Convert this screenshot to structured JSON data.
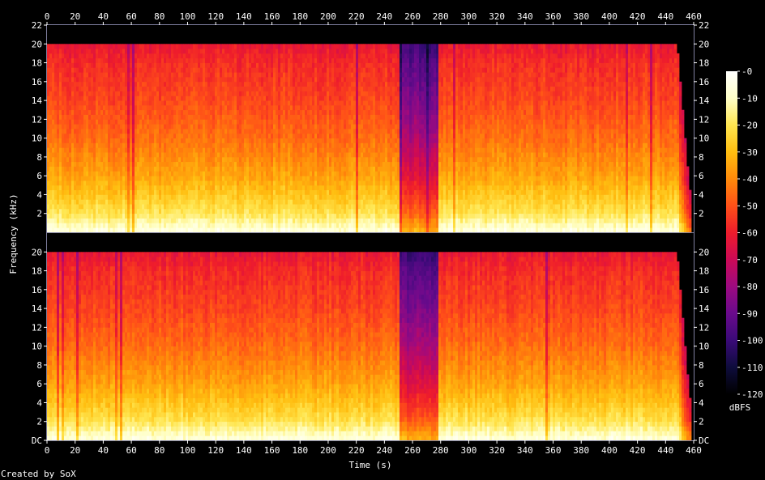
{
  "chart_data": {
    "type": "heatmap",
    "xlabel": "Time (s)",
    "ylabel": "Frequency (kHz)",
    "colorbar_label": "dBFS",
    "credit": "Created by SoX",
    "x_ticks": [
      "0",
      "20",
      "40",
      "60",
      "80",
      "100",
      "120",
      "140",
      "160",
      "180",
      "200",
      "220",
      "240",
      "260",
      "280",
      "300",
      "320",
      "340",
      "360",
      "380",
      "400",
      "420",
      "440",
      "460"
    ],
    "xlim": [
      0,
      460
    ],
    "y_ticks_top": [
      "2",
      "4",
      "6",
      "8",
      "10",
      "12",
      "14",
      "16",
      "18",
      "20",
      "22"
    ],
    "y_ticks_bottom": [
      "DC",
      "2",
      "4",
      "6",
      "8",
      "10",
      "12",
      "14",
      "16",
      "18",
      "20"
    ],
    "ylim": [
      0,
      22
    ],
    "colorbar_ticks": [
      "-0",
      "-10",
      "-20",
      "-30",
      "-40",
      "-50",
      "-60",
      "-70",
      "-80",
      "-90",
      "-100",
      "-110",
      "-120"
    ],
    "colorbar_range": [
      -120,
      0
    ],
    "channels": [
      {
        "name": "",
        "content_end_s": 448,
        "bandwidth_khz": 20,
        "quiet_section_s": [
          250,
          278
        ],
        "level_profile_db": [
          {
            "f_khz": 0,
            "db": -5
          },
          {
            "f_khz": 2,
            "db": -20
          },
          {
            "f_khz": 4,
            "db": -28
          },
          {
            "f_khz": 6,
            "db": -35
          },
          {
            "f_khz": 10,
            "db": -45
          },
          {
            "f_khz": 14,
            "db": -52
          },
          {
            "f_khz": 18,
            "db": -57
          },
          {
            "f_khz": 20,
            "db": -62
          }
        ]
      },
      {
        "name": "",
        "content_end_s": 448,
        "bandwidth_khz": 20,
        "quiet_section_s": [
          250,
          278
        ],
        "level_profile_db": [
          {
            "f_khz": 0,
            "db": -5
          },
          {
            "f_khz": 2,
            "db": -20
          },
          {
            "f_khz": 4,
            "db": -28
          },
          {
            "f_khz": 6,
            "db": -35
          },
          {
            "f_khz": 10,
            "db": -45
          },
          {
            "f_khz": 14,
            "db": -52
          },
          {
            "f_khz": 18,
            "db": -57
          },
          {
            "f_khz": 20,
            "db": -62
          }
        ]
      }
    ],
    "colors": {
      "background": "#000000",
      "text": "#ffffff",
      "frame": "#8080a0",
      "scale": [
        "#000000",
        "#0e0c3c",
        "#3a0a78",
        "#6a0a8c",
        "#9c0a80",
        "#cc0a56",
        "#ee1c2c",
        "#ff5018",
        "#ff8a0a",
        "#ffbe10",
        "#ffe650",
        "#ffffc8",
        "#ffffff"
      ]
    }
  }
}
